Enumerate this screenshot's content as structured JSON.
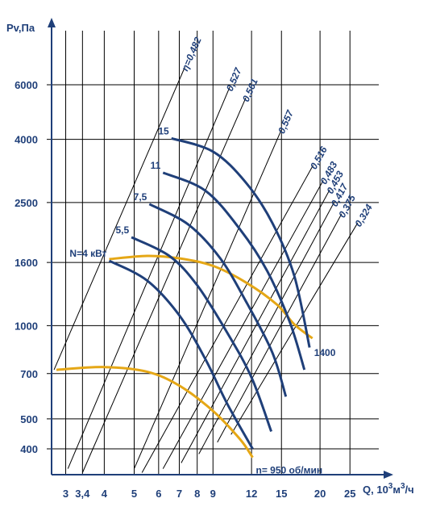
{
  "chart_data": {
    "type": "line",
    "title": "",
    "xlabel": "Q, 10³м³/ч",
    "ylabel": "Pv,Па",
    "xscale": "log",
    "yscale": "log",
    "xlim": [
      2.7,
      31
    ],
    "ylim": [
      330,
      10000
    ],
    "grid": true,
    "colors": {
      "axis": "#1f3f79",
      "grid": "#000000",
      "power_curve": "#1f3f79",
      "speed_curve": "#e5a716",
      "eff_line": "#000000"
    },
    "x_ticks": [
      "3",
      "3,4",
      "4",
      "5",
      "6",
      "7",
      "8",
      "9",
      "12",
      "15",
      "20",
      "25"
    ],
    "y_ticks": [
      "400",
      "500",
      "700",
      "1000",
      "1600",
      "2500",
      "4000",
      "6000"
    ],
    "power_curves": [
      {
        "label": "N=4 кВт",
        "points": [
          [
            4.15,
            1620
          ],
          [
            5.5,
            1400
          ],
          [
            7.0,
            1080
          ],
          [
            8.5,
            780
          ],
          [
            10.0,
            560
          ],
          [
            12.1,
            400
          ]
        ]
      },
      {
        "label": "5,5",
        "points": [
          [
            4.9,
            1930
          ],
          [
            6.5,
            1680
          ],
          [
            8.0,
            1350
          ],
          [
            10.0,
            950
          ],
          [
            12.0,
            680
          ],
          [
            13.9,
            455
          ]
        ]
      },
      {
        "label": "7,5",
        "points": [
          [
            5.6,
            2470
          ],
          [
            7.5,
            2120
          ],
          [
            9.5,
            1650
          ],
          [
            11.5,
            1200
          ],
          [
            14.0,
            820
          ],
          [
            15.5,
            590
          ]
        ]
      },
      {
        "label": "11",
        "points": [
          [
            6.2,
            3120
          ],
          [
            8.5,
            2730
          ],
          [
            11.0,
            2050
          ],
          [
            13.5,
            1500
          ],
          [
            16.0,
            1020
          ],
          [
            17.8,
            720
          ]
        ]
      },
      {
        "label": "15",
        "points": [
          [
            6.6,
            4030
          ],
          [
            9.0,
            3650
          ],
          [
            11.5,
            2900
          ],
          [
            14.0,
            2150
          ],
          [
            16.5,
            1450
          ],
          [
            18.5,
            850
          ]
        ]
      }
    ],
    "speed_curves": [
      {
        "label": "n= 950 об/мин",
        "points": [
          [
            2.8,
            720
          ],
          [
            4.0,
            735
          ],
          [
            5.5,
            710
          ],
          [
            7.0,
            640
          ],
          [
            9.0,
            530
          ],
          [
            11.0,
            430
          ],
          [
            12.1,
            375
          ]
        ]
      },
      {
        "label": "1400",
        "points": [
          [
            4.15,
            1640
          ],
          [
            5.5,
            1680
          ],
          [
            7.0,
            1650
          ],
          [
            9.0,
            1560
          ],
          [
            11.5,
            1380
          ],
          [
            14.5,
            1170
          ],
          [
            16.5,
            1010
          ],
          [
            18.9,
            910
          ]
        ]
      }
    ],
    "efficiency_lines": [
      {
        "label": "η=0,482",
        "from": [
          2.75,
          720
        ],
        "to": [
          7.3,
          6850
        ]
      },
      {
        "label": "0,527",
        "from": [
          3.05,
          345
        ],
        "to": [
          10.2,
          5900
        ]
      },
      {
        "label": "0,561",
        "from": [
          3.4,
          335
        ],
        "to": [
          11.5,
          5450
        ]
      },
      {
        "label": "0,557",
        "from": [
          5.0,
          345
        ],
        "to": [
          15.0,
          4300
        ]
      },
      {
        "label": "0,516",
        "from": [
          5.3,
          335
        ],
        "to": [
          19.0,
          3300
        ]
      },
      {
        "label": "0,483",
        "from": [
          6.2,
          345
        ],
        "to": [
          20.5,
          2950
        ]
      },
      {
        "label": "0,453",
        "from": [
          7.1,
          360
        ],
        "to": [
          21.5,
          2750
        ]
      },
      {
        "label": "0,417",
        "from": [
          8.1,
          385
        ],
        "to": [
          22.2,
          2500
        ]
      },
      {
        "label": "0,375",
        "from": [
          9.3,
          420
        ],
        "to": [
          23.5,
          2300
        ]
      },
      {
        "label": "0,324",
        "from": [
          10.3,
          445
        ],
        "to": [
          26.5,
          2150
        ]
      }
    ]
  }
}
